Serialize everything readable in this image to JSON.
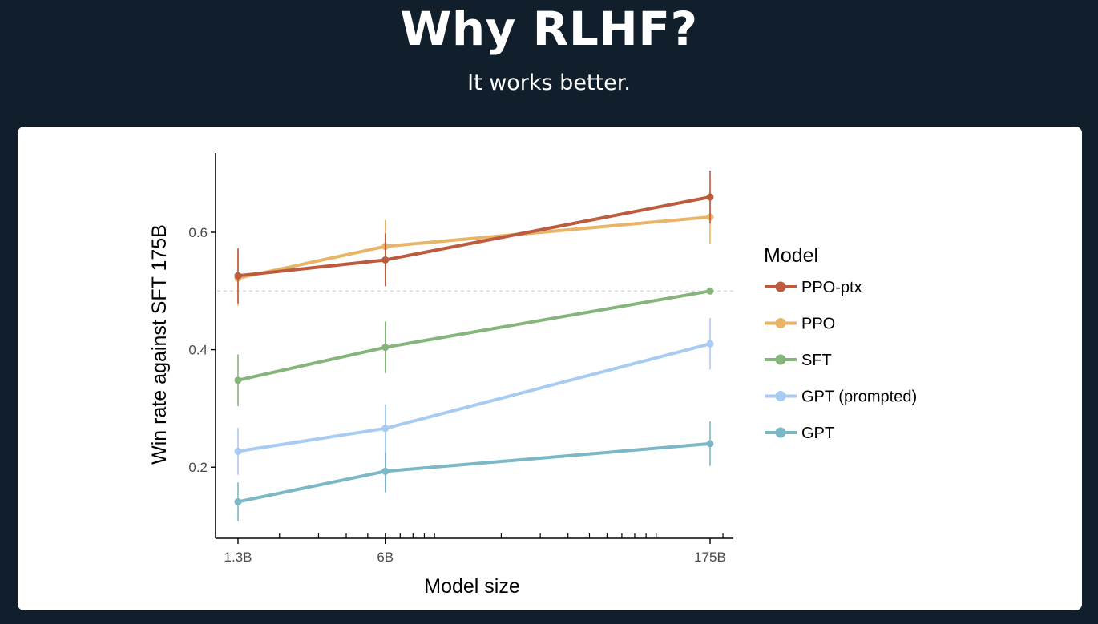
{
  "slide": {
    "title": "Why RLHF?",
    "subtitle": "It works better."
  },
  "chart_data": {
    "type": "line",
    "title": "",
    "xlabel": "Model size",
    "ylabel": "Win rate against SFT 175B",
    "x_scale": "log",
    "x": [
      1.3,
      6,
      175
    ],
    "x_tick_labels": [
      "1.3B",
      "6B",
      "175B"
    ],
    "y_ticks": [
      0.2,
      0.4,
      0.6
    ],
    "y_tick_labels": [
      "0.2",
      "0.4",
      "0.6"
    ],
    "ylim": [
      0.1,
      0.73
    ],
    "reference_line": 0.5,
    "grid": false,
    "legend_title": "Model",
    "legend_position": "right",
    "series": [
      {
        "name": "PPO-ptx",
        "color": "#bd5b3f",
        "values": [
          0.526,
          0.553,
          0.66
        ],
        "err": [
          0.047,
          0.045,
          0.045
        ]
      },
      {
        "name": "PPO",
        "color": "#e8b468",
        "values": [
          0.522,
          0.576,
          0.626
        ],
        "err": [
          0.047,
          0.045,
          0.045
        ]
      },
      {
        "name": "SFT",
        "color": "#86b57b",
        "values": [
          0.348,
          0.404,
          0.5
        ],
        "err": [
          0.044,
          0.044,
          0
        ]
      },
      {
        "name": "GPT (prompted)",
        "color": "#a8cbf2",
        "values": [
          0.227,
          0.266,
          0.41
        ],
        "err": [
          0.04,
          0.041,
          0.044
        ]
      },
      {
        "name": "GPT",
        "color": "#7cb7c6",
        "values": [
          0.141,
          0.193,
          0.24
        ],
        "err": [
          0.033,
          0.036,
          0.038
        ]
      }
    ]
  }
}
